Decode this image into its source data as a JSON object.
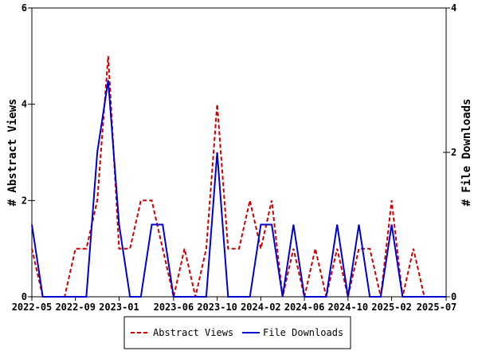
{
  "chart_data": {
    "type": "line",
    "ylabel_left": "# Abstract Views",
    "ylabel_right": "# File Downloads",
    "ylim_left": [
      0,
      6
    ],
    "ylim_right": [
      0,
      4
    ],
    "yticks_left": [
      "0",
      "2",
      "4",
      "6"
    ],
    "yticks_right": [
      "0",
      "2",
      "4"
    ],
    "x_tick_labels": [
      "2022-05",
      "2022-09",
      "2023-01",
      "2023-06",
      "2023-10",
      "2024-02",
      "2024-06",
      "2024-10",
      "2025-02",
      "2025-07"
    ],
    "x_tick_index": [
      0,
      4,
      8,
      13,
      17,
      21,
      25,
      29,
      33,
      38
    ],
    "months": [
      "2022-05",
      "2022-06",
      "2022-07",
      "2022-08",
      "2022-09",
      "2022-10",
      "2022-11",
      "2022-12",
      "2023-01",
      "2023-02",
      "2023-03",
      "2023-04",
      "2023-05",
      "2023-06",
      "2023-07",
      "2023-08",
      "2023-09",
      "2023-10",
      "2023-11",
      "2023-12",
      "2024-01",
      "2024-02",
      "2024-03",
      "2024-04",
      "2024-05",
      "2024-06",
      "2024-07",
      "2024-08",
      "2024-09",
      "2024-10",
      "2024-11",
      "2024-12",
      "2025-01",
      "2025-02",
      "2025-03",
      "2025-04",
      "2025-05",
      "2025-06",
      "2025-07"
    ],
    "legend_position": "bottom",
    "series": [
      {
        "name": "Abstract Views",
        "axis": "left",
        "color": "#cc0000",
        "dash": true,
        "values": [
          1,
          0,
          0,
          0,
          1,
          1,
          2,
          5,
          1,
          1,
          2,
          2,
          1,
          0,
          1,
          0,
          1,
          4,
          1,
          1,
          2,
          1,
          2,
          0,
          1,
          0,
          1,
          0,
          1,
          0,
          1,
          1,
          0,
          2,
          0,
          1,
          0,
          0,
          0
        ]
      },
      {
        "name": "File Downloads",
        "axis": "right",
        "color": "#0000cc",
        "dash": false,
        "values": [
          1,
          0,
          0,
          0,
          0,
          0,
          2,
          3,
          1,
          0,
          0,
          1,
          1,
          0,
          0,
          0,
          0,
          2,
          0,
          0,
          0,
          1,
          1,
          0,
          1,
          0,
          0,
          0,
          1,
          0,
          1,
          0,
          0,
          1,
          0,
          0,
          0,
          0,
          0
        ]
      }
    ]
  }
}
